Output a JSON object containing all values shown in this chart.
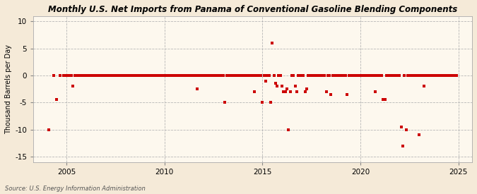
{
  "title": "Monthly U.S. Net Imports from Panama of Conventional Gasoline Blending Components",
  "ylabel": "Thousand Barrels per Day",
  "source": "Source: U.S. Energy Information Administration",
  "background_color": "#f5ead8",
  "plot_bg_color": "#fdf8ee",
  "marker_color": "#cc0000",
  "marker_size": 5,
  "ylim": [
    -16,
    11
  ],
  "yticks": [
    -15,
    -10,
    -5,
    0,
    5,
    10
  ],
  "xlim_start": 2003.3,
  "xlim_end": 2025.7,
  "xticks": [
    2005,
    2010,
    2015,
    2020,
    2025
  ],
  "data_points": [
    [
      2004.08,
      -10
    ],
    [
      2004.33,
      0
    ],
    [
      2004.5,
      -4.5
    ],
    [
      2004.67,
      0
    ],
    [
      2004.83,
      0
    ],
    [
      2005.0,
      0
    ],
    [
      2005.08,
      0
    ],
    [
      2005.17,
      0
    ],
    [
      2005.25,
      0
    ],
    [
      2005.33,
      -2
    ],
    [
      2005.42,
      0
    ],
    [
      2005.5,
      0
    ],
    [
      2005.58,
      0
    ],
    [
      2005.67,
      0
    ],
    [
      2005.75,
      0
    ],
    [
      2005.83,
      0
    ],
    [
      2005.92,
      0
    ],
    [
      2006.0,
      0
    ],
    [
      2006.08,
      0
    ],
    [
      2006.17,
      0
    ],
    [
      2006.25,
      0
    ],
    [
      2006.33,
      0
    ],
    [
      2006.42,
      0
    ],
    [
      2006.5,
      0
    ],
    [
      2006.58,
      0
    ],
    [
      2006.67,
      0
    ],
    [
      2006.75,
      0
    ],
    [
      2006.83,
      0
    ],
    [
      2006.92,
      0
    ],
    [
      2007.0,
      0
    ],
    [
      2007.08,
      0
    ],
    [
      2007.17,
      0
    ],
    [
      2007.25,
      0
    ],
    [
      2007.33,
      0
    ],
    [
      2007.42,
      0
    ],
    [
      2007.5,
      0
    ],
    [
      2007.58,
      0
    ],
    [
      2007.67,
      0
    ],
    [
      2007.75,
      0
    ],
    [
      2007.83,
      0
    ],
    [
      2007.92,
      0
    ],
    [
      2008.0,
      0
    ],
    [
      2008.08,
      0
    ],
    [
      2008.17,
      0
    ],
    [
      2008.25,
      0
    ],
    [
      2008.33,
      0
    ],
    [
      2008.42,
      0
    ],
    [
      2008.5,
      0
    ],
    [
      2008.58,
      0
    ],
    [
      2008.67,
      0
    ],
    [
      2008.75,
      0
    ],
    [
      2008.83,
      0
    ],
    [
      2008.92,
      0
    ],
    [
      2009.0,
      0
    ],
    [
      2009.08,
      0
    ],
    [
      2009.17,
      0
    ],
    [
      2009.25,
      0
    ],
    [
      2009.33,
      0
    ],
    [
      2009.42,
      0
    ],
    [
      2009.5,
      0
    ],
    [
      2009.58,
      0
    ],
    [
      2009.67,
      0
    ],
    [
      2009.75,
      0
    ],
    [
      2009.83,
      0
    ],
    [
      2009.92,
      0
    ],
    [
      2010.0,
      0
    ],
    [
      2010.08,
      0
    ],
    [
      2010.17,
      0
    ],
    [
      2010.25,
      0
    ],
    [
      2010.33,
      0
    ],
    [
      2010.42,
      0
    ],
    [
      2010.5,
      0
    ],
    [
      2010.58,
      0
    ],
    [
      2010.67,
      0
    ],
    [
      2010.75,
      0
    ],
    [
      2010.83,
      0
    ],
    [
      2010.92,
      0
    ],
    [
      2011.0,
      0
    ],
    [
      2011.08,
      0
    ],
    [
      2011.17,
      0
    ],
    [
      2011.25,
      0
    ],
    [
      2011.33,
      0
    ],
    [
      2011.42,
      0
    ],
    [
      2011.5,
      0
    ],
    [
      2011.58,
      0
    ],
    [
      2011.67,
      -2.5
    ],
    [
      2011.75,
      0
    ],
    [
      2011.83,
      0
    ],
    [
      2011.92,
      0
    ],
    [
      2012.0,
      0
    ],
    [
      2012.08,
      0
    ],
    [
      2012.17,
      0
    ],
    [
      2012.25,
      0
    ],
    [
      2012.33,
      0
    ],
    [
      2012.42,
      0
    ],
    [
      2012.5,
      0
    ],
    [
      2012.58,
      0
    ],
    [
      2012.67,
      0
    ],
    [
      2012.75,
      0
    ],
    [
      2012.83,
      0
    ],
    [
      2012.92,
      0
    ],
    [
      2013.0,
      0
    ],
    [
      2013.08,
      -5
    ],
    [
      2013.17,
      0
    ],
    [
      2013.25,
      0
    ],
    [
      2013.33,
      0
    ],
    [
      2013.42,
      0
    ],
    [
      2013.5,
      0
    ],
    [
      2013.58,
      0
    ],
    [
      2013.67,
      0
    ],
    [
      2013.75,
      0
    ],
    [
      2013.83,
      0
    ],
    [
      2013.92,
      0
    ],
    [
      2014.0,
      0
    ],
    [
      2014.08,
      0
    ],
    [
      2014.17,
      0
    ],
    [
      2014.25,
      0
    ],
    [
      2014.33,
      0
    ],
    [
      2014.42,
      0
    ],
    [
      2014.5,
      0
    ],
    [
      2014.58,
      -3
    ],
    [
      2014.67,
      0
    ],
    [
      2014.75,
      0
    ],
    [
      2014.83,
      0
    ],
    [
      2014.92,
      0
    ],
    [
      2015.0,
      -5
    ],
    [
      2015.08,
      0
    ],
    [
      2015.17,
      -1
    ],
    [
      2015.25,
      0
    ],
    [
      2015.33,
      0
    ],
    [
      2015.42,
      -5
    ],
    [
      2015.5,
      6
    ],
    [
      2015.58,
      0
    ],
    [
      2015.67,
      -1.5
    ],
    [
      2015.75,
      -2
    ],
    [
      2015.83,
      0
    ],
    [
      2015.92,
      0
    ],
    [
      2016.0,
      -2
    ],
    [
      2016.08,
      -3
    ],
    [
      2016.17,
      -3
    ],
    [
      2016.25,
      -2.5
    ],
    [
      2016.33,
      -10
    ],
    [
      2016.42,
      -3
    ],
    [
      2016.5,
      0
    ],
    [
      2016.58,
      0
    ],
    [
      2016.67,
      -2
    ],
    [
      2016.75,
      -3
    ],
    [
      2016.83,
      0
    ],
    [
      2016.92,
      0
    ],
    [
      2017.0,
      0
    ],
    [
      2017.08,
      0
    ],
    [
      2017.17,
      -3
    ],
    [
      2017.25,
      -2.5
    ],
    [
      2017.33,
      0
    ],
    [
      2017.42,
      0
    ],
    [
      2017.5,
      0
    ],
    [
      2017.58,
      0
    ],
    [
      2017.67,
      0
    ],
    [
      2017.75,
      0
    ],
    [
      2017.83,
      0
    ],
    [
      2017.92,
      0
    ],
    [
      2018.0,
      0
    ],
    [
      2018.08,
      0
    ],
    [
      2018.17,
      0
    ],
    [
      2018.25,
      -3
    ],
    [
      2018.33,
      0
    ],
    [
      2018.42,
      0
    ],
    [
      2018.5,
      -3.5
    ],
    [
      2018.58,
      0
    ],
    [
      2018.67,
      0
    ],
    [
      2018.75,
      0
    ],
    [
      2018.83,
      0
    ],
    [
      2018.92,
      0
    ],
    [
      2019.0,
      0
    ],
    [
      2019.08,
      0
    ],
    [
      2019.17,
      0
    ],
    [
      2019.25,
      0
    ],
    [
      2019.33,
      -3.5
    ],
    [
      2019.42,
      0
    ],
    [
      2019.5,
      0
    ],
    [
      2019.58,
      0
    ],
    [
      2019.67,
      0
    ],
    [
      2019.75,
      0
    ],
    [
      2019.83,
      0
    ],
    [
      2019.92,
      0
    ],
    [
      2020.0,
      0
    ],
    [
      2020.08,
      0
    ],
    [
      2020.17,
      0
    ],
    [
      2020.25,
      0
    ],
    [
      2020.33,
      0
    ],
    [
      2020.42,
      0
    ],
    [
      2020.5,
      0
    ],
    [
      2020.58,
      0
    ],
    [
      2020.67,
      0
    ],
    [
      2020.75,
      -3
    ],
    [
      2020.83,
      0
    ],
    [
      2020.92,
      0
    ],
    [
      2021.0,
      0
    ],
    [
      2021.08,
      0
    ],
    [
      2021.17,
      -4.5
    ],
    [
      2021.25,
      -4.5
    ],
    [
      2021.33,
      0
    ],
    [
      2021.42,
      0
    ],
    [
      2021.5,
      0
    ],
    [
      2021.58,
      0
    ],
    [
      2021.67,
      0
    ],
    [
      2021.75,
      0
    ],
    [
      2021.83,
      0
    ],
    [
      2021.92,
      0
    ],
    [
      2022.0,
      0
    ],
    [
      2022.08,
      -9.5
    ],
    [
      2022.17,
      -13
    ],
    [
      2022.25,
      0
    ],
    [
      2022.33,
      -10
    ],
    [
      2022.42,
      0
    ],
    [
      2022.5,
      0
    ],
    [
      2022.58,
      0
    ],
    [
      2022.67,
      0
    ],
    [
      2022.75,
      0
    ],
    [
      2022.83,
      0
    ],
    [
      2022.92,
      0
    ],
    [
      2023.0,
      -11
    ],
    [
      2023.08,
      0
    ],
    [
      2023.17,
      0
    ],
    [
      2023.25,
      -2
    ],
    [
      2023.33,
      0
    ],
    [
      2023.42,
      0
    ],
    [
      2023.5,
      0
    ],
    [
      2023.58,
      0
    ],
    [
      2023.67,
      0
    ],
    [
      2023.75,
      0
    ],
    [
      2023.83,
      0
    ],
    [
      2023.92,
      0
    ],
    [
      2024.0,
      0
    ],
    [
      2024.08,
      0
    ],
    [
      2024.17,
      0
    ],
    [
      2024.25,
      0
    ],
    [
      2024.33,
      0
    ],
    [
      2024.42,
      0
    ],
    [
      2024.5,
      0
    ],
    [
      2024.58,
      0
    ],
    [
      2024.67,
      0
    ],
    [
      2024.75,
      0
    ],
    [
      2024.83,
      0
    ],
    [
      2024.92,
      0
    ]
  ]
}
